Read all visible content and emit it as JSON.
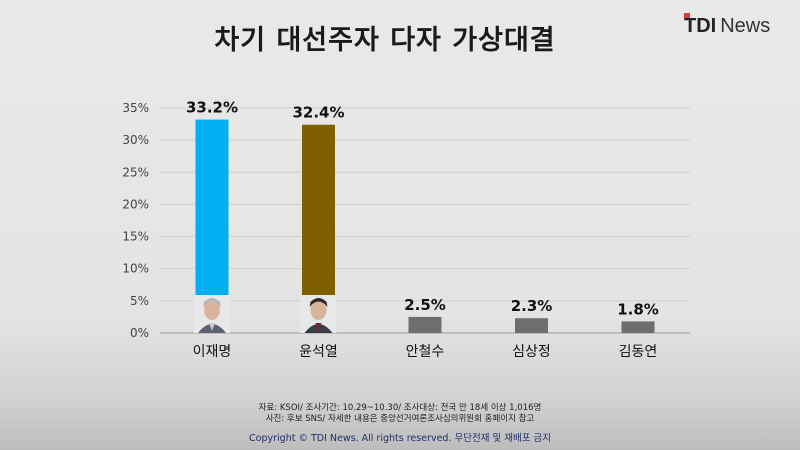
{
  "header": {
    "title": "차기 대선주자 다자 가상대결",
    "logo_mark": "TDI",
    "logo_text": "News"
  },
  "chart_data": {
    "type": "bar",
    "title": "차기 대선주자 다자 가상대결",
    "categories": [
      "이재명",
      "윤석열",
      "안철수",
      "심상정",
      "김동연"
    ],
    "values": [
      33.2,
      32.4,
      2.5,
      2.3,
      1.8
    ],
    "value_labels": [
      "33.2%",
      "32.4%",
      "2.5%",
      "2.3%",
      "1.8%"
    ],
    "ylim": [
      0,
      35
    ],
    "yticks": [
      0,
      5,
      10,
      15,
      20,
      25,
      30,
      35
    ],
    "ytick_labels": [
      "0%",
      "5%",
      "10%",
      "15%",
      "20%",
      "25%",
      "30%",
      "35%"
    ],
    "bar_colors": [
      "#00b0f0",
      "#7f6000",
      "#6e6e6e",
      "#6e6e6e",
      "#6e6e6e"
    ],
    "grid": true,
    "candidate_photos": [
      true,
      true,
      false,
      false,
      false
    ]
  },
  "footer": {
    "source_line": "자료: KSOI/ 조사기간: 10.29~10.30/ 조사대상: 전국 만 18세 이상 1,016명",
    "note_line": "사진: 후보 SNS/ 자세한 내용은 중앙선거여론조사심의위원회 홈페이지 참고",
    "copyright": "Copyright © TDI News. All rights reserved. 무단전재 및 재배포 금지"
  }
}
